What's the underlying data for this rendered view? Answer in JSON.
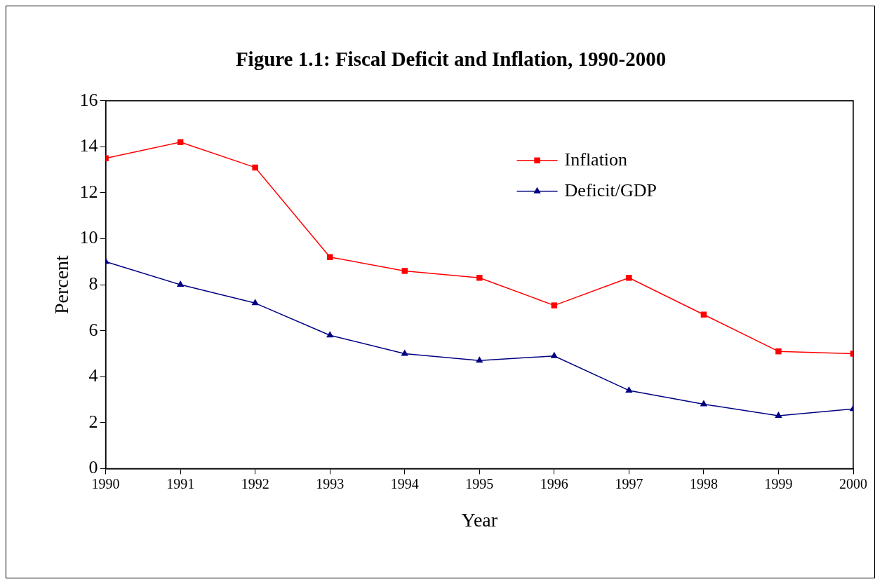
{
  "chart_data": {
    "type": "line",
    "title": "Figure 1.1: Fiscal Deficit and Inflation, 1990-2000",
    "xlabel": "Year",
    "ylabel": "Percent",
    "x": [
      1990,
      1991,
      1992,
      1993,
      1994,
      1995,
      1996,
      1997,
      1998,
      1999,
      2000
    ],
    "series": [
      {
        "name": "Inflation",
        "color": "#ff0000",
        "marker": "square",
        "values": [
          13.5,
          14.2,
          13.1,
          9.2,
          8.6,
          8.3,
          7.1,
          8.3,
          6.7,
          5.1,
          5.0
        ]
      },
      {
        "name": "Deficit/GDP",
        "color": "#000080",
        "marker": "triangle",
        "values": [
          9.0,
          8.0,
          7.2,
          5.8,
          5.0,
          4.7,
          4.9,
          3.4,
          2.8,
          2.3,
          2.6
        ]
      }
    ],
    "xlim": [
      1990,
      2000
    ],
    "xticks": [
      1990,
      1991,
      1992,
      1993,
      1994,
      1995,
      1996,
      1997,
      1998,
      1999,
      2000
    ],
    "ylim": [
      0,
      16
    ],
    "yticks": [
      0,
      2,
      4,
      6,
      8,
      10,
      12,
      14,
      16
    ],
    "grid": false,
    "legend": "top right",
    "line_style": "solid"
  }
}
